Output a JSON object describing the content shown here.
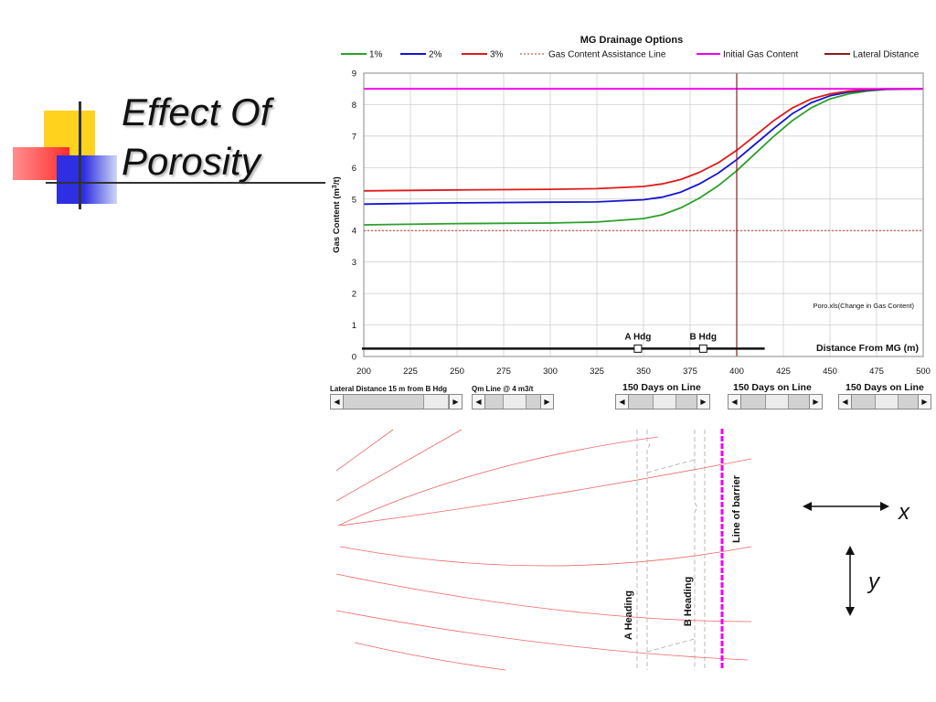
{
  "slide": {
    "title_line1": "Effect Of",
    "title_line2": "Porosity"
  },
  "chart_data": {
    "type": "line",
    "title": "MG  Drainage Options",
    "xlabel": "Distance From MG (m)",
    "ylabel_main": "Gas Content (m",
    "ylabel_sup": "3",
    "ylabel_end": "/t)",
    "xlim": [
      200,
      500
    ],
    "ylim": [
      0,
      9
    ],
    "grid": true,
    "x_ticks": [
      200,
      225,
      250,
      275,
      300,
      325,
      350,
      375,
      400,
      425,
      450,
      475,
      500
    ],
    "y_ticks": [
      0,
      1,
      2,
      3,
      4,
      5,
      6,
      7,
      8,
      9
    ],
    "legend_position": "top",
    "series": [
      {
        "name": "1%",
        "color": "#2ca02c",
        "style": "solid",
        "x": [
          200,
          250,
          300,
          325,
          350,
          360,
          370,
          380,
          390,
          400,
          410,
          420,
          430,
          440,
          450,
          460,
          470,
          480,
          500
        ],
        "y": [
          4.18,
          4.22,
          4.24,
          4.27,
          4.38,
          4.5,
          4.72,
          5.03,
          5.42,
          5.9,
          6.45,
          7.0,
          7.5,
          7.9,
          8.18,
          8.34,
          8.43,
          8.48,
          8.5
        ]
      },
      {
        "name": "2%",
        "color": "#1414d2",
        "style": "solid",
        "x": [
          200,
          250,
          300,
          325,
          350,
          360,
          370,
          380,
          390,
          400,
          410,
          420,
          430,
          440,
          450,
          460,
          470,
          480,
          500
        ],
        "y": [
          4.84,
          4.88,
          4.9,
          4.91,
          4.98,
          5.06,
          5.22,
          5.48,
          5.82,
          6.25,
          6.75,
          7.25,
          7.72,
          8.06,
          8.28,
          8.4,
          8.46,
          8.49,
          8.5
        ]
      },
      {
        "name": "3%",
        "color": "#e01a1a",
        "style": "solid",
        "x": [
          200,
          250,
          300,
          325,
          350,
          360,
          370,
          380,
          390,
          400,
          410,
          420,
          430,
          440,
          450,
          460,
          470,
          480,
          500
        ],
        "y": [
          5.26,
          5.29,
          5.31,
          5.33,
          5.4,
          5.48,
          5.62,
          5.85,
          6.15,
          6.55,
          7.02,
          7.5,
          7.9,
          8.18,
          8.34,
          8.43,
          8.48,
          8.5,
          8.5
        ]
      },
      {
        "name": "Gas Content Assistance Line",
        "color": "#c0392b",
        "style": "dotted",
        "x": [
          200,
          500
        ],
        "y": [
          4,
          4
        ]
      },
      {
        "name": "Initial Gas Content",
        "color": "#ee00ee",
        "style": "solid",
        "x": [
          200,
          500
        ],
        "y": [
          8.5,
          8.5
        ]
      },
      {
        "name": "Lateral Distance",
        "color": "#8b1a1a",
        "style": "solid",
        "x": [
          400,
          400
        ],
        "y": [
          0,
          9
        ]
      }
    ],
    "annotations": {
      "source_note": "Poro.xls(Change in Gas Content)",
      "heading_a_label": "A Hdg",
      "heading_b_label": "B Hdg",
      "heading_a_x": 347,
      "heading_b_x": 382,
      "heading_y": 0.25,
      "heading_bar_x": [
        199,
        415
      ]
    }
  },
  "controls": [
    {
      "id": "lateral",
      "label": "Lateral Distance 15 m from B Hdg",
      "thumb_pos": 0.62
    },
    {
      "id": "qm",
      "label": "Qm Line @ 4 m3/t",
      "thumb_pos": 0.5
    },
    {
      "id": "days1",
      "label": "150  Days on Line",
      "thumb_pos": 0.5
    },
    {
      "id": "days2",
      "label": "150  Days on Line",
      "thumb_pos": 0.5
    },
    {
      "id": "days3",
      "label": "150  Days on Line",
      "thumb_pos": 0.5
    }
  ],
  "diagram": {
    "heading_a_label": "A Heading",
    "heading_b_label": "B Heading",
    "barrier_label": "Line of barrier",
    "x_axis_label": "x",
    "y_axis_label": "y",
    "barrier_color": "#ee00ee",
    "line_color": "#ee6666"
  }
}
